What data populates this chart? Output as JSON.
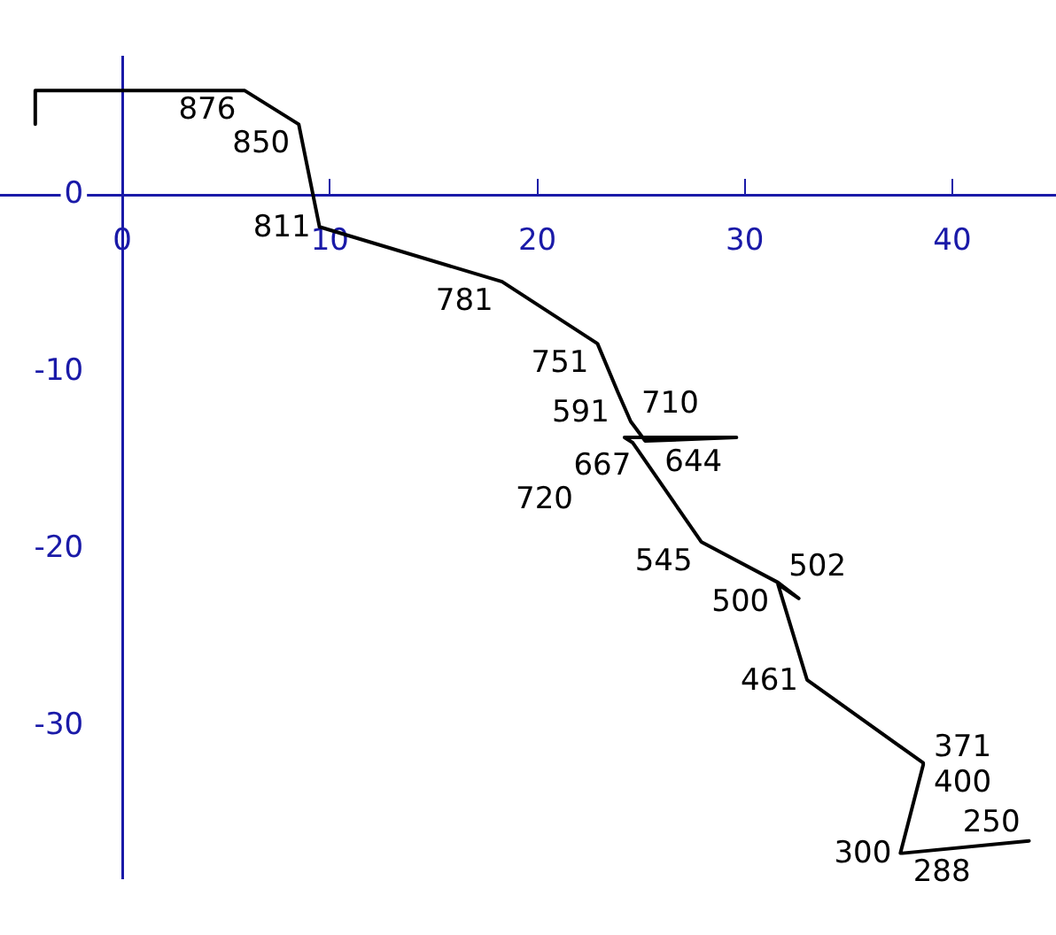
{
  "chart_data": {
    "type": "line",
    "color": "#000000",
    "marker": "none",
    "grid": false,
    "legend": false,
    "x": [
      -4.2,
      -4.2,
      5.9,
      8.5,
      9.5,
      18.3,
      22.9,
      23.9,
      24.5,
      25.2,
      29.6,
      24.2,
      24.6,
      27.9,
      31.6,
      32.6,
      31.6,
      33.0,
      38.6,
      38.6,
      37.5,
      37.6,
      43.7
    ],
    "values": [
      4.0,
      5.9,
      5.9,
      4.0,
      -1.8,
      -4.9,
      -8.4,
      -11.2,
      -12.8,
      -13.9,
      -13.7,
      -13.7,
      -14.0,
      -19.6,
      -21.9,
      -22.8,
      -22.0,
      -27.4,
      -32.1,
      -32.2,
      -37.2,
      -37.2,
      -36.5
    ],
    "annotations": [
      {
        "text": "876",
        "x": 5.9,
        "y": 5.9
      },
      {
        "text": "850",
        "x": 8.5,
        "y": 4.0
      },
      {
        "text": "811",
        "x": 9.5,
        "y": -1.8
      },
      {
        "text": "781",
        "x": 18.3,
        "y": -4.9
      },
      {
        "text": "751",
        "x": 22.9,
        "y": -8.4
      },
      {
        "text": "591",
        "x": 23.9,
        "y": -11.2
      },
      {
        "text": "710",
        "x": 24.5,
        "y": -12.8
      },
      {
        "text": "667",
        "x": 25.2,
        "y": -13.9
      },
      {
        "text": "720",
        "x": 24.2,
        "y": -13.7
      },
      {
        "text": "644",
        "x": 24.6,
        "y": -14.0
      },
      {
        "text": "545",
        "x": 27.9,
        "y": -19.6
      },
      {
        "text": "500",
        "x": 31.6,
        "y": -21.9
      },
      {
        "text": "502",
        "x": 31.6,
        "y": -22.0
      },
      {
        "text": "461",
        "x": 33.0,
        "y": -27.4
      },
      {
        "text": "400",
        "x": 38.6,
        "y": -32.1
      },
      {
        "text": "371",
        "x": 38.6,
        "y": -32.2
      },
      {
        "text": "300",
        "x": 37.5,
        "y": -37.2
      },
      {
        "text": "288",
        "x": 37.6,
        "y": -37.2
      },
      {
        "text": "250",
        "x": 43.7,
        "y": -36.5
      }
    ],
    "xlim": [
      -5.9,
      45
    ],
    "ylim": [
      -38.6,
      7.8
    ],
    "xticks": [
      0,
      10,
      20,
      30,
      40
    ],
    "yticks": [
      -30,
      -20,
      -10,
      0
    ]
  }
}
